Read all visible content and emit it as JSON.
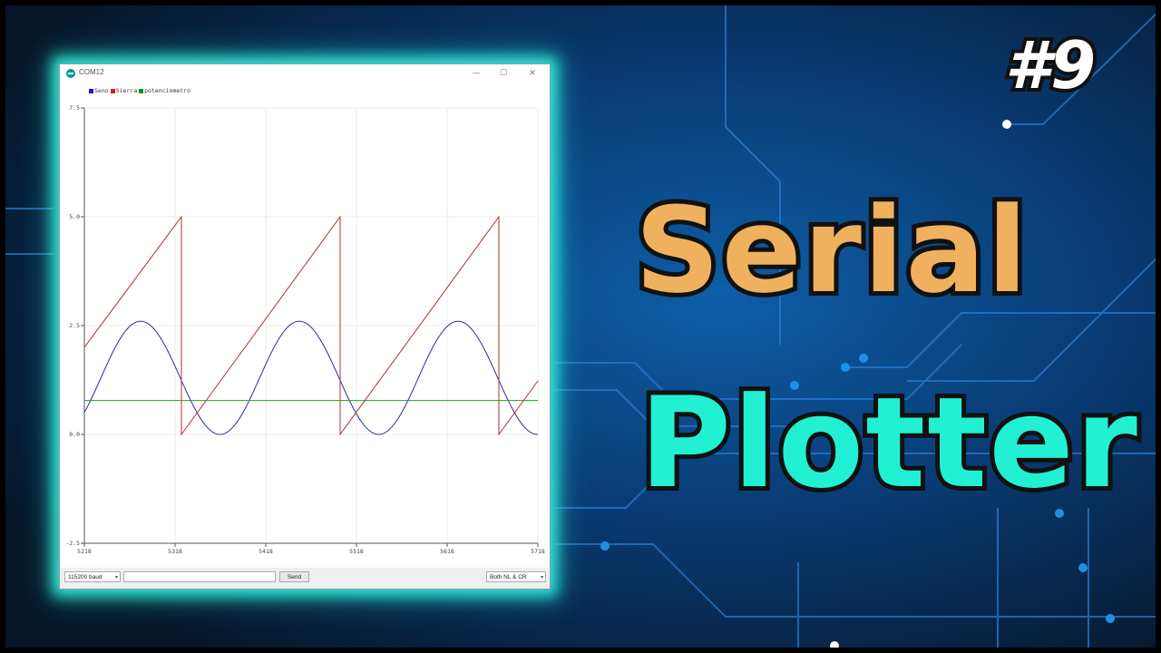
{
  "window": {
    "title": "COM12",
    "controls": {
      "minimize": "—",
      "maximize": "☐",
      "close": "✕"
    }
  },
  "legend": [
    {
      "name": "Seno",
      "color": "#1a1acc"
    },
    {
      "name": "Sierra",
      "color": "#cc2222"
    },
    {
      "name": "potenciometro",
      "color": "#1a8c1a"
    }
  ],
  "bottom_bar": {
    "baud": "115200 baud",
    "input_value": "",
    "send_label": "Send",
    "line_ending": "Both NL & CR"
  },
  "overlay": {
    "tag": "#9",
    "title_line1": "Serial",
    "title_line2": "Plotter"
  },
  "chart_data": {
    "type": "line",
    "xlim": [
      5218,
      5718
    ],
    "ylim": [
      -2.5,
      7.5
    ],
    "x_ticks": [
      "5218",
      "5318",
      "5418",
      "5518",
      "5618",
      "5718"
    ],
    "y_ticks": [
      "7.5",
      "5.0",
      "2.5",
      "0.0",
      "-2.5"
    ],
    "grid": true,
    "series": [
      {
        "name": "Seno",
        "color": "#2a2aa8",
        "kind": "sine",
        "offset": 1.3,
        "amplitude": 1.3,
        "period": 175,
        "peak_x": 5280
      },
      {
        "name": "Sierra",
        "color": "#b03030",
        "kind": "sawtooth",
        "min": 0.0,
        "max": 5.0,
        "start_value": 2.0,
        "drops_at": [
          5325,
          5500,
          5675
        ]
      },
      {
        "name": "potenciometro",
        "color": "#2a9a2a",
        "kind": "constant",
        "value": 0.78
      }
    ]
  }
}
